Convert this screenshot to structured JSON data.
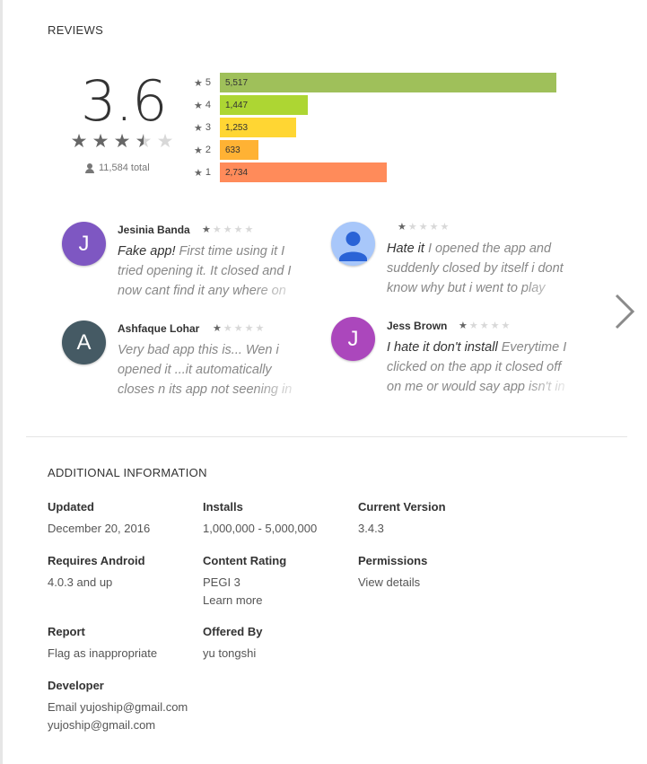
{
  "reviews": {
    "title": "REVIEWS",
    "rating": "3.6",
    "total": "11,584 total",
    "histogram": [
      {
        "star": "5",
        "count": "5,517",
        "value": 5517,
        "color": "#9fc05a"
      },
      {
        "star": "4",
        "count": "1,447",
        "value": 1447,
        "color": "#add633"
      },
      {
        "star": "3",
        "count": "1,253",
        "value": 1253,
        "color": "#ffd633"
      },
      {
        "star": "2",
        "count": "633",
        "value": 633,
        "color": "#ffb234"
      },
      {
        "star": "1",
        "count": "2,734",
        "value": 2734,
        "color": "#ff8b5a"
      }
    ],
    "items": [
      {
        "name": "Jesinia Banda",
        "initial": "J",
        "avatar_color": "#7e57c2",
        "stars": 1,
        "headline": "Fake app!",
        "text": "First time using it I tried opening it. It closed and I now cant find it any where on"
      },
      {
        "name": "",
        "initial": "",
        "avatar_color": "#a8c7fa",
        "stars": 1,
        "headline": "Hate it",
        "text": "I opened the app and suddenly closed by itself i dont know why but i went to play"
      },
      {
        "name": "Ashfaque Lohar",
        "initial": "A",
        "avatar_color": "#455a64",
        "stars": 1,
        "headline": "",
        "text": "Very bad app this is... Wen i opened it ...it automatically closes n its app not seening in"
      },
      {
        "name": "Jess Brown",
        "initial": "J",
        "avatar_color": "#ab47bc",
        "stars": 1,
        "headline": "I hate it don't install",
        "text": "Everytime I clicked on the app it closed off on me or would say app isn't in"
      }
    ],
    "next_icon": "chevron-right-icon"
  },
  "additional": {
    "title": "ADDITIONAL INFORMATION",
    "updated": {
      "label": "Updated",
      "value": "December 20, 2016"
    },
    "installs": {
      "label": "Installs",
      "value": "1,000,000 - 5,000,000"
    },
    "version": {
      "label": "Current Version",
      "value": "3.4.3"
    },
    "android": {
      "label": "Requires Android",
      "value": "4.0.3 and up"
    },
    "content": {
      "label": "Content Rating",
      "value": "PEGI 3",
      "link": "Learn more"
    },
    "permissions": {
      "label": "Permissions",
      "link": "View details"
    },
    "report": {
      "label": "Report",
      "link": "Flag as inappropriate"
    },
    "offered": {
      "label": "Offered By",
      "value": "yu tongshi"
    },
    "developer": {
      "label": "Developer",
      "email": "Email yujoship@gmail.com",
      "email2": "yujoship@gmail.com"
    }
  }
}
